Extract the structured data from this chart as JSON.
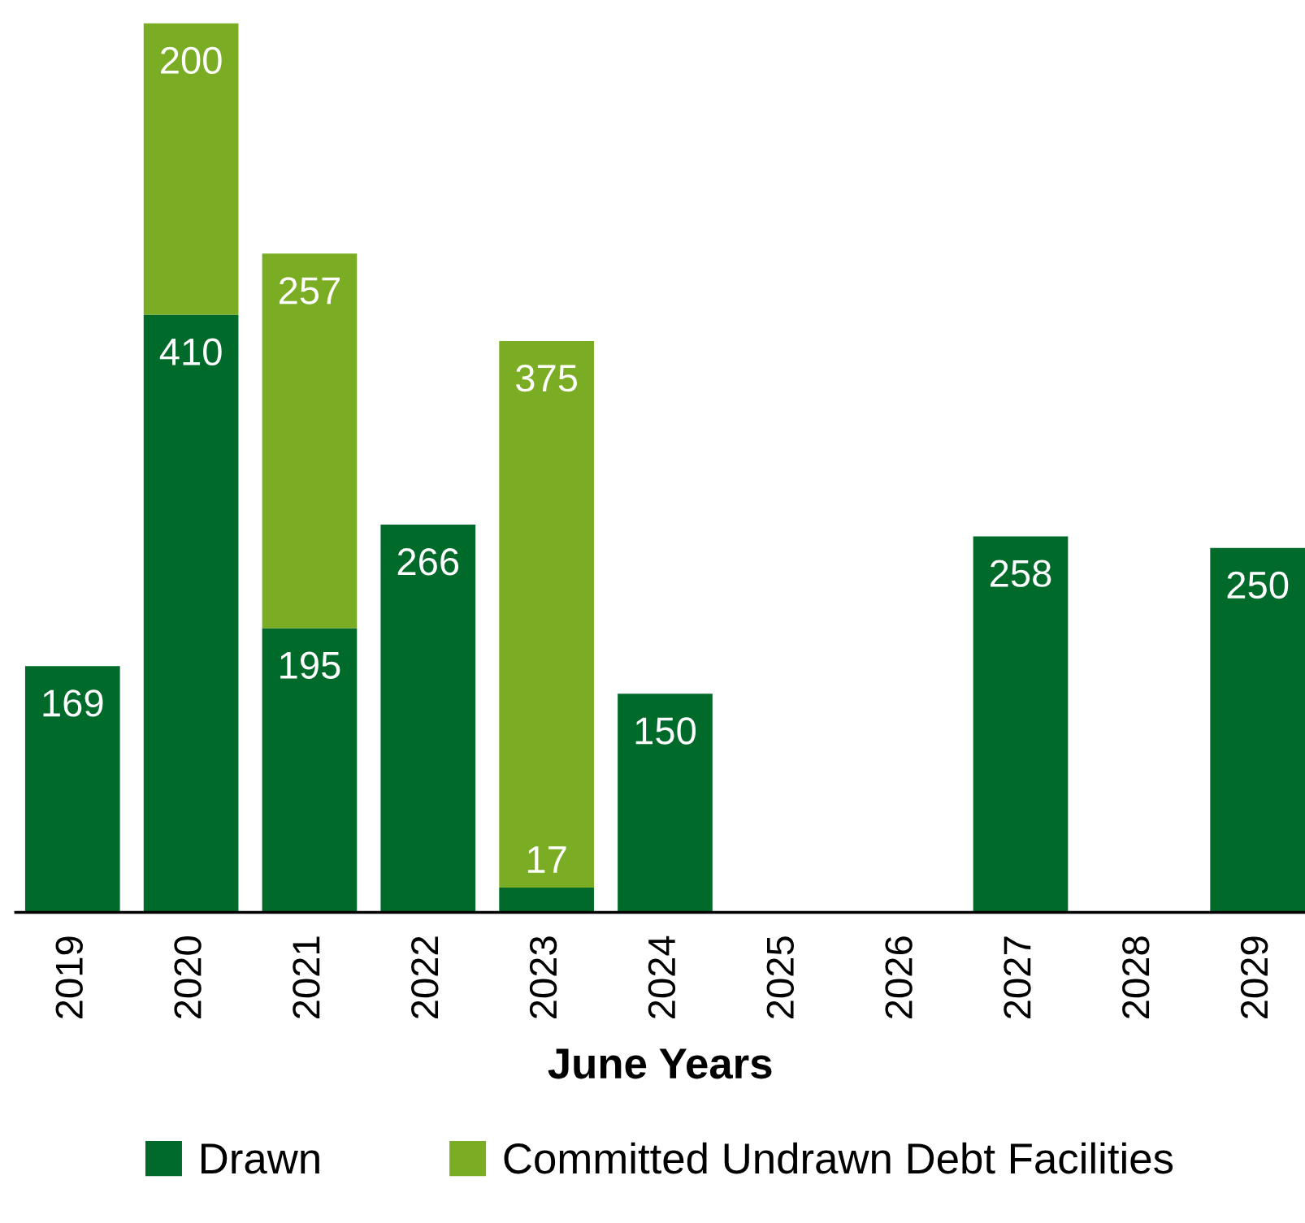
{
  "chart_data": {
    "type": "bar",
    "stacked": true,
    "xlabel": "June Years",
    "categories": [
      "2019",
      "2020",
      "2021",
      "2022",
      "2023",
      "2024",
      "2025",
      "2026",
      "2027",
      "2028",
      "2029"
    ],
    "series": [
      {
        "name": "Drawn",
        "color": "#006a2a",
        "values": [
          169,
          410,
          195,
          266,
          17,
          150,
          null,
          null,
          258,
          null,
          250
        ]
      },
      {
        "name": "Committed Undrawn Debt Facilities",
        "color": "#7aad23",
        "values": [
          null,
          200,
          257,
          null,
          375,
          null,
          null,
          null,
          null,
          null,
          null
        ]
      }
    ],
    "data_labels": true,
    "legend": "bottom",
    "grid": false
  }
}
